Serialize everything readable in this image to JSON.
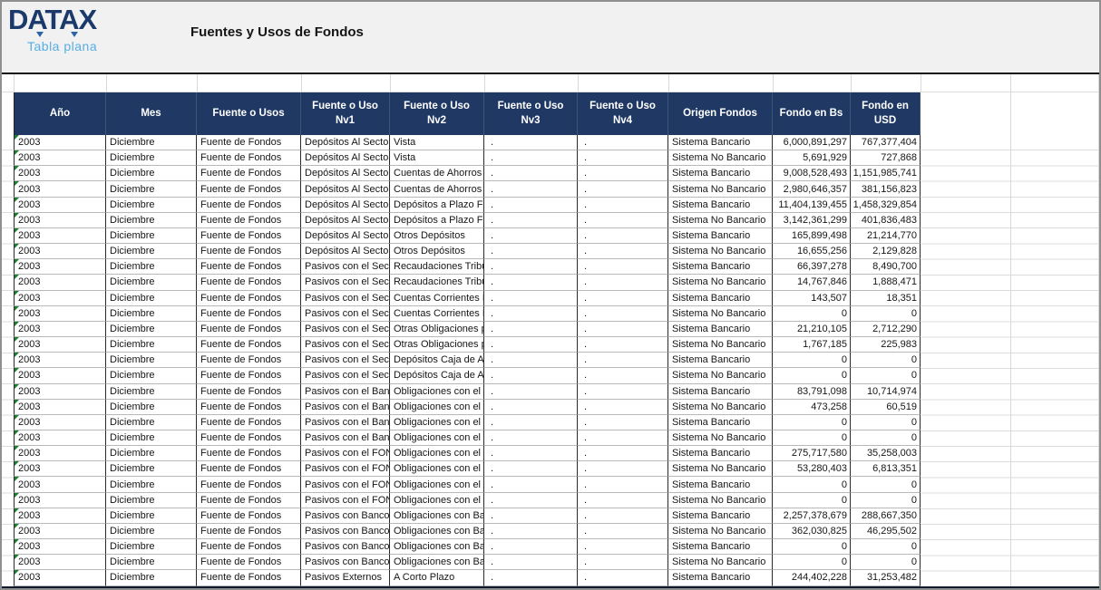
{
  "page": {
    "brand": "DATAX",
    "brand_tagline": "Tabla plana",
    "title": "Fuentes y Usos de Fondos"
  },
  "colors": {
    "header_bg": "#1f3864",
    "brand_navy": "#1b3a6b",
    "brand_light_blue": "#56ade4",
    "error_triangle_green": "#1e7e34",
    "top_band_bg": "#f1f1f1"
  },
  "table": {
    "columns": [
      {
        "key": "ano",
        "label": "Año"
      },
      {
        "key": "mes",
        "label": "Mes"
      },
      {
        "key": "fuente",
        "label": "Fuente o Usos"
      },
      {
        "key": "nv1",
        "label": "Fuente o Uso Nv1"
      },
      {
        "key": "nv2",
        "label": "Fuente o Uso Nv2"
      },
      {
        "key": "nv3",
        "label": "Fuente o Uso Nv3"
      },
      {
        "key": "nv4",
        "label": "Fuente o Uso Nv4"
      },
      {
        "key": "origen",
        "label": "Origen Fondos"
      },
      {
        "key": "bs",
        "label": "Fondo en Bs"
      },
      {
        "key": "usd",
        "label": "Fondo en USD"
      }
    ],
    "rows": [
      [
        "2003",
        "Diciembre",
        "Fuente de Fondos",
        "Depósitos Al Sector P",
        "Vista",
        ".",
        ".",
        "Sistema Bancario",
        "6,000,891,297",
        "767,377,404"
      ],
      [
        "2003",
        "Diciembre",
        "Fuente de Fondos",
        "Depósitos Al Sector P",
        "Vista",
        ".",
        ".",
        "Sistema No Bancario",
        "5,691,929",
        "727,868"
      ],
      [
        "2003",
        "Diciembre",
        "Fuente de Fondos",
        "Depósitos Al Sector P",
        "Cuentas de Ahorros",
        ".",
        ".",
        "Sistema Bancario",
        "9,008,528,493",
        "1,151,985,741"
      ],
      [
        "2003",
        "Diciembre",
        "Fuente de Fondos",
        "Depósitos Al Sector P",
        "Cuentas de Ahorros",
        ".",
        ".",
        "Sistema No Bancario",
        "2,980,646,357",
        "381,156,823"
      ],
      [
        "2003",
        "Diciembre",
        "Fuente de Fondos",
        "Depósitos Al Sector P",
        "Depósitos a Plazo Fijo",
        ".",
        ".",
        "Sistema Bancario",
        "11,404,139,455",
        "1,458,329,854"
      ],
      [
        "2003",
        "Diciembre",
        "Fuente de Fondos",
        "Depósitos Al Sector P",
        "Depósitos a Plazo Fijo",
        ".",
        ".",
        "Sistema No Bancario",
        "3,142,361,299",
        "401,836,483"
      ],
      [
        "2003",
        "Diciembre",
        "Fuente de Fondos",
        "Depósitos Al Sector P",
        "Otros Depósitos",
        ".",
        ".",
        "Sistema Bancario",
        "165,899,498",
        "21,214,770"
      ],
      [
        "2003",
        "Diciembre",
        "Fuente de Fondos",
        "Depósitos Al Sector P",
        "Otros Depósitos",
        ".",
        ".",
        "Sistema No Bancario",
        "16,655,256",
        "2,129,828"
      ],
      [
        "2003",
        "Diciembre",
        "Fuente de Fondos",
        "Pasivos con el Sector",
        "Recaudaciones Tribut",
        ".",
        ".",
        "Sistema Bancario",
        "66,397,278",
        "8,490,700"
      ],
      [
        "2003",
        "Diciembre",
        "Fuente de Fondos",
        "Pasivos con el Sector",
        "Recaudaciones Tribut",
        ".",
        ".",
        "Sistema No Bancario",
        "14,767,846",
        "1,888,471"
      ],
      [
        "2003",
        "Diciembre",
        "Fuente de Fondos",
        "Pasivos con el Sector",
        "Cuentas Corrientes Fi",
        ".",
        ".",
        "Sistema Bancario",
        "143,507",
        "18,351"
      ],
      [
        "2003",
        "Diciembre",
        "Fuente de Fondos",
        "Pasivos con el Sector",
        "Cuentas Corrientes Fi",
        ".",
        ".",
        "Sistema No Bancario",
        "0",
        "0"
      ],
      [
        "2003",
        "Diciembre",
        "Fuente de Fondos",
        "Pasivos con el Sector",
        "Otras Obligaciones p",
        ".",
        ".",
        "Sistema Bancario",
        "21,210,105",
        "2,712,290"
      ],
      [
        "2003",
        "Diciembre",
        "Fuente de Fondos",
        "Pasivos con el Sector",
        "Otras Obligaciones p",
        ".",
        ".",
        "Sistema No Bancario",
        "1,767,185",
        "225,983"
      ],
      [
        "2003",
        "Diciembre",
        "Fuente de Fondos",
        "Pasivos con el Sector",
        "Depósitos Caja de Ah",
        ".",
        ".",
        "Sistema Bancario",
        "0",
        "0"
      ],
      [
        "2003",
        "Diciembre",
        "Fuente de Fondos",
        "Pasivos con el Sector",
        "Depósitos Caja de Ah",
        ".",
        ".",
        "Sistema No Bancario",
        "0",
        "0"
      ],
      [
        "2003",
        "Diciembre",
        "Fuente de Fondos",
        "Pasivos con el Banco C",
        "Obligaciones con el B",
        ".",
        ".",
        "Sistema Bancario",
        "83,791,098",
        "10,714,974"
      ],
      [
        "2003",
        "Diciembre",
        "Fuente de Fondos",
        "Pasivos con el Banco C",
        "Obligaciones con el B",
        ".",
        ".",
        "Sistema No Bancario",
        "473,258",
        "60,519"
      ],
      [
        "2003",
        "Diciembre",
        "Fuente de Fondos",
        "Pasivos con el Banco C",
        "Obligaciones con el B",
        ".",
        ".",
        "Sistema Bancario",
        "0",
        "0"
      ],
      [
        "2003",
        "Diciembre",
        "Fuente de Fondos",
        "Pasivos con el Banco C",
        "Obligaciones con el B",
        ".",
        ".",
        "Sistema No Bancario",
        "0",
        "0"
      ],
      [
        "2003",
        "Diciembre",
        "Fuente de Fondos",
        "Pasivos con el FONDO",
        "Obligaciones con el F",
        ".",
        ".",
        "Sistema Bancario",
        "275,717,580",
        "35,258,003"
      ],
      [
        "2003",
        "Diciembre",
        "Fuente de Fondos",
        "Pasivos con el FONDO",
        "Obligaciones con el F",
        ".",
        ".",
        "Sistema No Bancario",
        "53,280,403",
        "6,813,351"
      ],
      [
        "2003",
        "Diciembre",
        "Fuente de Fondos",
        "Pasivos con el FONDO",
        "Obligaciones con el F",
        ".",
        ".",
        "Sistema Bancario",
        "0",
        "0"
      ],
      [
        "2003",
        "Diciembre",
        "Fuente de Fondos",
        "Pasivos con el FONDO",
        "Obligaciones con el F",
        ".",
        ".",
        "Sistema No Bancario",
        "0",
        "0"
      ],
      [
        "2003",
        "Diciembre",
        "Fuente de Fondos",
        "Pasivos con Bancos de",
        "Obligaciones con Ban",
        ".",
        ".",
        "Sistema Bancario",
        "2,257,378,679",
        "288,667,350"
      ],
      [
        "2003",
        "Diciembre",
        "Fuente de Fondos",
        "Pasivos con Bancos de",
        "Obligaciones con Ban",
        ".",
        ".",
        "Sistema No Bancario",
        "362,030,825",
        "46,295,502"
      ],
      [
        "2003",
        "Diciembre",
        "Fuente de Fondos",
        "Pasivos con Bancos de",
        "Obligaciones con Ban",
        ".",
        ".",
        "Sistema Bancario",
        "0",
        "0"
      ],
      [
        "2003",
        "Diciembre",
        "Fuente de Fondos",
        "Pasivos con Bancos de",
        "Obligaciones con Ban",
        ".",
        ".",
        "Sistema No Bancario",
        "0",
        "0"
      ],
      [
        "2003",
        "Diciembre",
        "Fuente de Fondos",
        "Pasivos Externos",
        "A Corto Plazo",
        ".",
        ".",
        "Sistema Bancario",
        "244,402,228",
        "31,253,482"
      ]
    ]
  }
}
